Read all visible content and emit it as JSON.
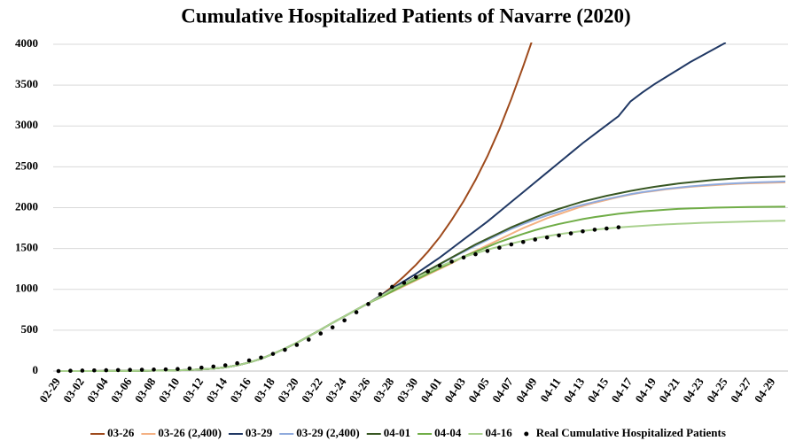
{
  "chart_data": {
    "type": "line",
    "title": "Cumulative Hospitalized Patients of Navarre (2020)",
    "categories": [
      "02-29",
      null,
      "03-02",
      null,
      "03-04",
      null,
      "03-06",
      null,
      "03-08",
      null,
      "03-10",
      null,
      "03-12",
      null,
      "03-14",
      null,
      "03-16",
      null,
      "03-18",
      null,
      "03-20",
      null,
      "03-22",
      null,
      "03-24",
      null,
      "03-26",
      null,
      "03-28",
      null,
      "03-30",
      null,
      "04-01",
      null,
      "04-03",
      null,
      "04-05",
      null,
      "04-07",
      null,
      "04-09",
      null,
      "04-11",
      null,
      "04-13",
      null,
      "04-15",
      null,
      "04-17",
      null,
      "04-19",
      null,
      "04-21",
      null,
      "04-23",
      null,
      "04-25",
      null,
      "04-27",
      null,
      "04-29",
      null
    ],
    "ylim": [
      0,
      4000
    ],
    "yticks": [
      0,
      500,
      1000,
      1500,
      2000,
      2500,
      3000,
      3500,
      4000
    ],
    "grid": true,
    "legend": "bottom",
    "series": [
      {
        "name": "03-26",
        "color": "#9e4a1c",
        "values": [
          0,
          0,
          0,
          0,
          1,
          1,
          2,
          3,
          5,
          7,
          10,
          14,
          20,
          30,
          45,
          70,
          105,
          150,
          210,
          275,
          345,
          425,
          505,
          590,
          670,
          750,
          830,
          920,
          1030,
          1160,
          1300,
          1460,
          1640,
          1850,
          2080,
          2340,
          2630,
          2960,
          3330,
          3730,
          4150,
          null,
          null,
          null,
          null,
          null,
          null,
          null,
          null,
          null,
          null,
          null,
          null,
          null,
          null,
          null,
          null,
          null,
          null,
          null,
          null,
          null
        ]
      },
      {
        "name": "03-26 (2,400)",
        "color": "#f4b183",
        "values": [
          0,
          0,
          0,
          0,
          1,
          1,
          2,
          3,
          5,
          7,
          10,
          14,
          20,
          30,
          45,
          70,
          105,
          150,
          210,
          275,
          345,
          425,
          505,
          590,
          670,
          750,
          830,
          900,
          970,
          1040,
          1110,
          1180,
          1250,
          1320,
          1400,
          1470,
          1540,
          1610,
          1680,
          1750,
          1810,
          1870,
          1920,
          1970,
          2020,
          2060,
          2095,
          2130,
          2160,
          2185,
          2205,
          2225,
          2240,
          2255,
          2265,
          2275,
          2285,
          2292,
          2298,
          2302,
          2306,
          2310
        ]
      },
      {
        "name": "03-29",
        "color": "#203864",
        "values": [
          0,
          0,
          0,
          0,
          1,
          1,
          2,
          3,
          5,
          7,
          10,
          14,
          20,
          30,
          45,
          70,
          105,
          150,
          210,
          275,
          345,
          425,
          505,
          590,
          670,
          750,
          830,
          920,
          1010,
          1100,
          1190,
          1290,
          1390,
          1500,
          1610,
          1720,
          1830,
          1950,
          2070,
          2190,
          2310,
          2430,
          2550,
          2670,
          2790,
          2900,
          3010,
          3120,
          3300,
          3410,
          3510,
          3600,
          3690,
          3780,
          3860,
          3940,
          4020,
          null,
          null,
          null,
          null,
          null
        ]
      },
      {
        "name": "03-29 (2,400)",
        "color": "#8faadc",
        "values": [
          0,
          0,
          0,
          0,
          1,
          1,
          2,
          3,
          5,
          7,
          10,
          14,
          20,
          30,
          45,
          70,
          105,
          150,
          210,
          275,
          345,
          425,
          505,
          590,
          670,
          750,
          830,
          905,
          985,
          1065,
          1145,
          1225,
          1305,
          1385,
          1460,
          1535,
          1605,
          1675,
          1740,
          1800,
          1855,
          1905,
          1950,
          1995,
          2035,
          2070,
          2105,
          2135,
          2165,
          2190,
          2210,
          2230,
          2245,
          2260,
          2272,
          2283,
          2292,
          2300,
          2306,
          2311,
          2316,
          2320
        ]
      },
      {
        "name": "04-01",
        "color": "#385723",
        "values": [
          0,
          0,
          0,
          0,
          1,
          1,
          2,
          3,
          5,
          7,
          10,
          14,
          20,
          30,
          45,
          70,
          105,
          150,
          210,
          275,
          345,
          425,
          505,
          590,
          670,
          750,
          830,
          910,
          990,
          1070,
          1150,
          1230,
          1310,
          1390,
          1470,
          1550,
          1620,
          1690,
          1760,
          1820,
          1880,
          1935,
          1985,
          2030,
          2075,
          2110,
          2145,
          2175,
          2205,
          2230,
          2255,
          2275,
          2295,
          2310,
          2325,
          2340,
          2350,
          2360,
          2368,
          2374,
          2378,
          2382
        ]
      },
      {
        "name": "04-04",
        "color": "#70ad47",
        "values": [
          0,
          0,
          0,
          0,
          1,
          1,
          2,
          3,
          5,
          7,
          10,
          14,
          20,
          30,
          45,
          70,
          105,
          150,
          210,
          275,
          345,
          425,
          505,
          590,
          670,
          750,
          830,
          900,
          975,
          1050,
          1120,
          1190,
          1260,
          1330,
          1400,
          1460,
          1520,
          1580,
          1630,
          1680,
          1725,
          1765,
          1800,
          1830,
          1860,
          1885,
          1905,
          1925,
          1940,
          1955,
          1965,
          1975,
          1985,
          1990,
          1995,
          2000,
          2003,
          2006,
          2008,
          2010,
          2011,
          2012
        ]
      },
      {
        "name": "04-16",
        "color": "#a9d18e",
        "values": [
          0,
          0,
          0,
          0,
          1,
          1,
          2,
          3,
          5,
          7,
          10,
          14,
          20,
          30,
          45,
          70,
          105,
          150,
          210,
          275,
          345,
          425,
          505,
          590,
          670,
          750,
          830,
          910,
          1000,
          1070,
          1140,
          1210,
          1280,
          1340,
          1395,
          1440,
          1485,
          1525,
          1560,
          1595,
          1625,
          1650,
          1675,
          1695,
          1715,
          1730,
          1745,
          1757,
          1768,
          1778,
          1787,
          1795,
          1802,
          1808,
          1814,
          1819,
          1823,
          1827,
          1831,
          1834,
          1837,
          1840
        ]
      },
      {
        "name": "Real Cumulative Hospitalized Patients",
        "color": "#000000",
        "style": "markers",
        "values": [
          0,
          3,
          6,
          8,
          10,
          12,
          14,
          16,
          18,
          20,
          25,
          32,
          42,
          55,
          70,
          95,
          130,
          165,
          210,
          260,
          320,
          385,
          460,
          535,
          620,
          720,
          820,
          940,
          1030,
          1080,
          1150,
          1220,
          1290,
          1340,
          1390,
          1430,
          1470,
          1510,
          1550,
          1580,
          1610,
          1635,
          1660,
          1685,
          1710,
          1730,
          1745,
          1760,
          null,
          null,
          null,
          null,
          null,
          null,
          null,
          null,
          null,
          null,
          null,
          null,
          null,
          null
        ]
      }
    ]
  }
}
